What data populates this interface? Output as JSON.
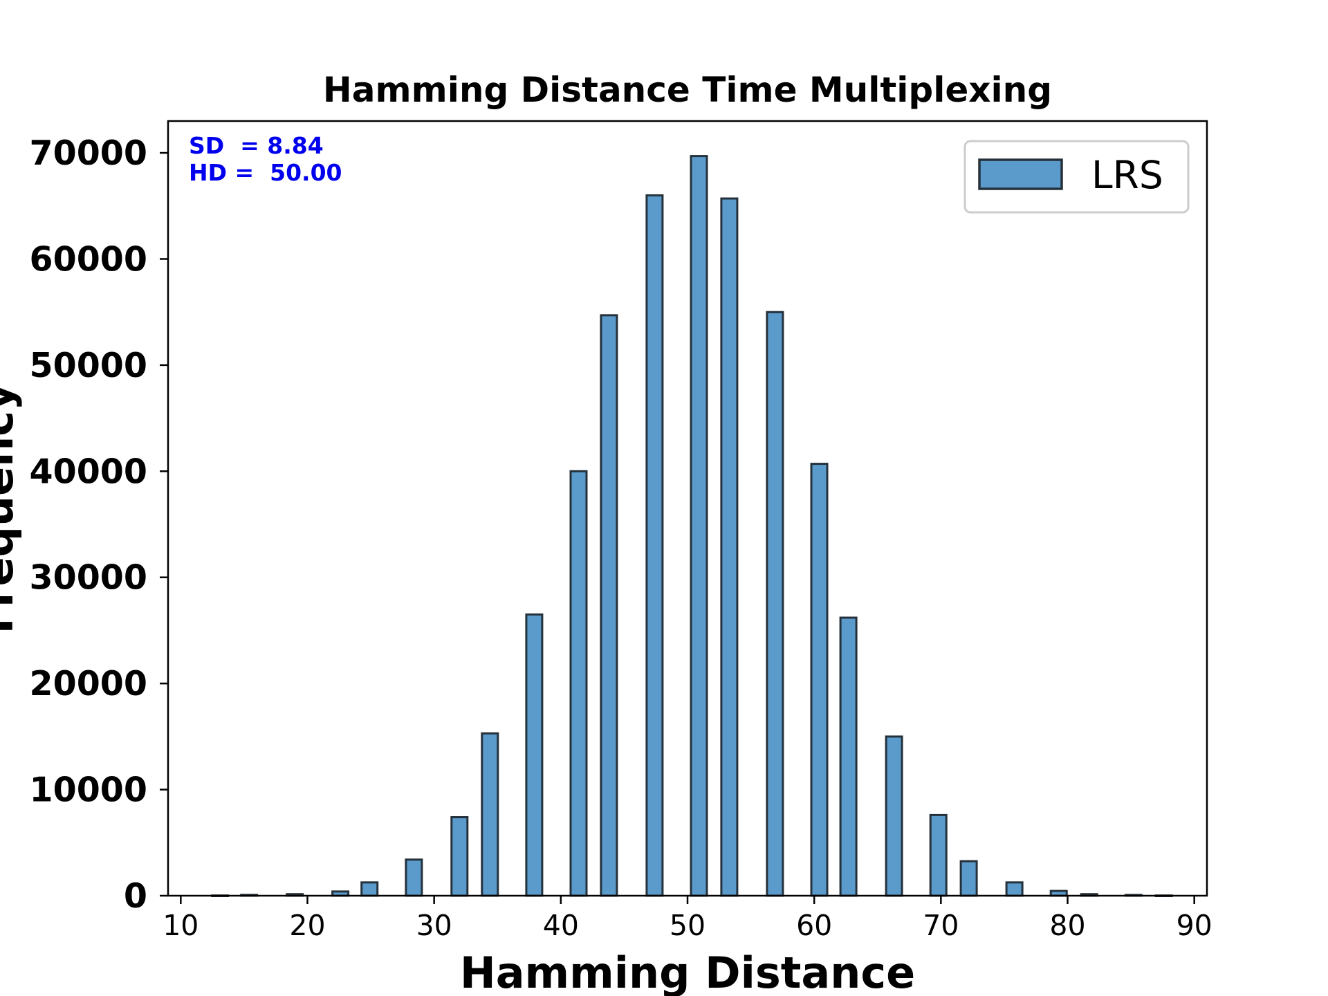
{
  "chart_data": {
    "type": "bar",
    "title": "Hamming Distance Time Multiplexing",
    "xlabel": "Hamming Distance",
    "ylabel": "Frequency",
    "xlim": [
      9,
      91
    ],
    "ylim": [
      0,
      73000
    ],
    "xticks": [
      "10",
      "20",
      "30",
      "40",
      "50",
      "60",
      "70",
      "80",
      "90"
    ],
    "yticks": [
      "0",
      "10000",
      "20000",
      "30000",
      "40000",
      "50000",
      "60000",
      "70000"
    ],
    "grid": false,
    "legend_position": "top-right",
    "bar_color": "#5b9bcb",
    "edge_color": "#24313b",
    "annotation_color": "#0000ee",
    "annotations": [
      "SD  = 8.84",
      "HD =  50.00"
    ],
    "series": [
      {
        "name": "LRS",
        "x": [
          13.1,
          15.4,
          19.0,
          22.6,
          24.9,
          28.4,
          32.0,
          34.4,
          37.9,
          41.4,
          43.8,
          47.4,
          50.9,
          53.3,
          56.9,
          60.4,
          62.7,
          66.3,
          69.8,
          72.2,
          75.8,
          79.3,
          81.7,
          85.2,
          87.6
        ],
        "values": [
          20,
          80,
          150,
          400,
          1250,
          3400,
          7400,
          15300,
          26500,
          40000,
          54700,
          66000,
          69700,
          65700,
          55000,
          40700,
          26200,
          15000,
          7600,
          3250,
          1250,
          450,
          150,
          70,
          20
        ]
      }
    ]
  }
}
